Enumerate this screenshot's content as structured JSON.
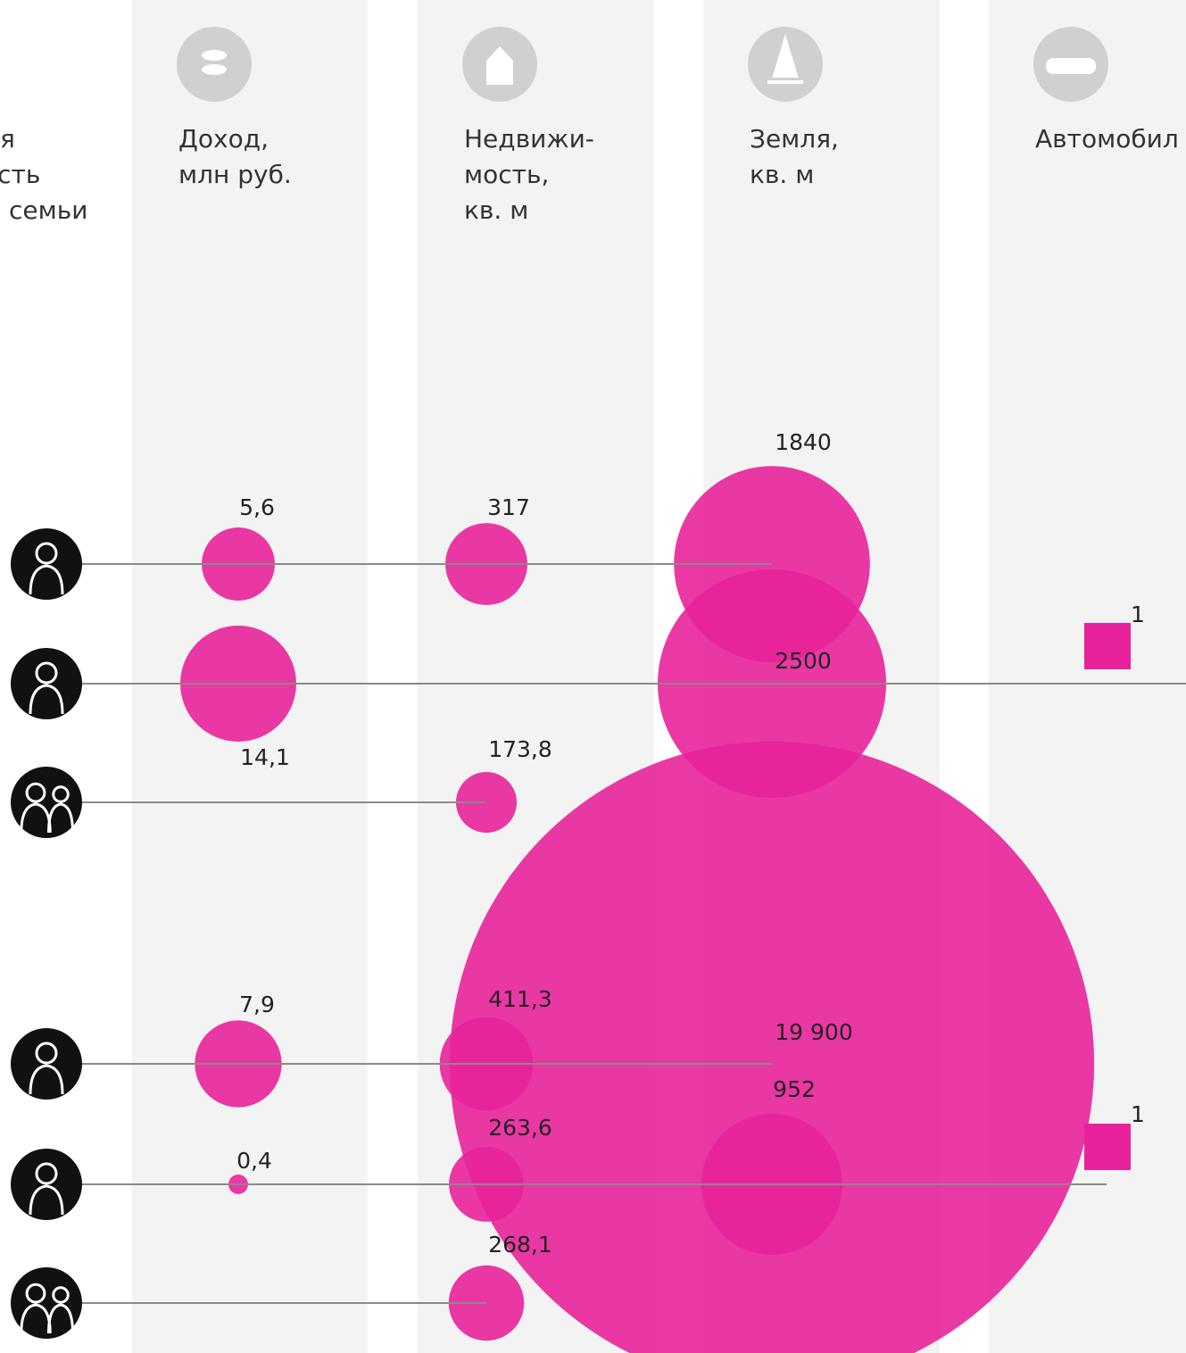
{
  "header_left": [
    "я",
    "ость",
    "семьи"
  ],
  "columns": [
    {
      "header": [
        "Доход,",
        "млн руб."
      ],
      "values": [
        5.6,
        14.1,
        null,
        7.9,
        0.4,
        null
      ],
      "value_labels": [
        "5,6",
        "14,1",
        null,
        "7,9",
        "0,4",
        null
      ]
    },
    {
      "header": [
        "Недвижи-",
        "мость,",
        "кв. м"
      ],
      "values": [
        317,
        null,
        173.8,
        411.3,
        263.6,
        268.1
      ],
      "value_labels": [
        "317",
        null,
        "173,8",
        "411,3",
        "263,6",
        "268,1"
      ]
    },
    {
      "header": [
        "Земля,",
        "кв. м"
      ],
      "values": [
        1840,
        2500,
        null,
        19900,
        952,
        null
      ],
      "value_labels": [
        "1840",
        "2500",
        null,
        "19 900",
        "952",
        null
      ]
    },
    {
      "header": [
        "Автомобил"
      ],
      "values": [
        null,
        1,
        null,
        null,
        1,
        null
      ],
      "value_labels": [
        null,
        "1",
        null,
        null,
        "1",
        null
      ]
    }
  ]
}
